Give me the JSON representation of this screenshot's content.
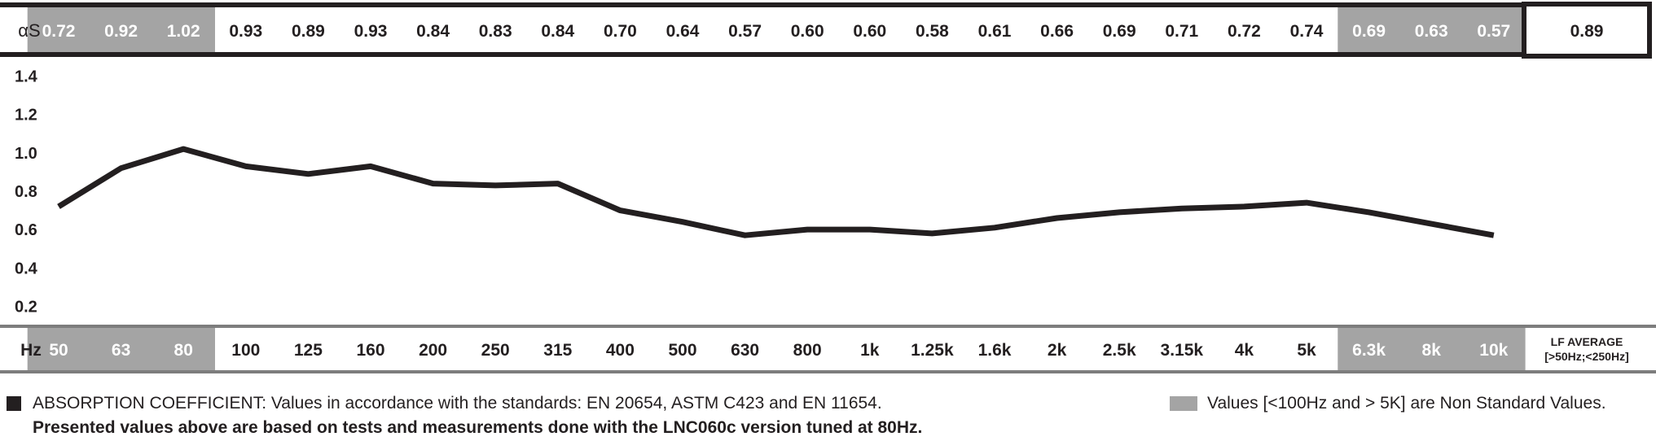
{
  "chart_data": {
    "type": "line",
    "row_label_top": "αS",
    "row_label_bottom": "Hz",
    "categories": [
      "50",
      "63",
      "80",
      "100",
      "125",
      "160",
      "200",
      "250",
      "315",
      "400",
      "500",
      "630",
      "800",
      "1k",
      "1.25k",
      "1.6k",
      "2k",
      "2.5k",
      "3.15k",
      "4k",
      "5k",
      "6.3k",
      "8k",
      "10k"
    ],
    "values": [
      0.72,
      0.92,
      1.02,
      0.93,
      0.89,
      0.93,
      0.84,
      0.83,
      0.84,
      0.7,
      0.64,
      0.57,
      0.6,
      0.6,
      0.58,
      0.61,
      0.66,
      0.69,
      0.71,
      0.72,
      0.74,
      0.69,
      0.63,
      0.57
    ],
    "value_labels": [
      "0.72",
      "0.92",
      "1.02",
      "0.93",
      "0.89",
      "0.93",
      "0.84",
      "0.83",
      "0.84",
      "0.70",
      "0.64",
      "0.57",
      "0.60",
      "0.60",
      "0.58",
      "0.61",
      "0.66",
      "0.69",
      "0.71",
      "0.72",
      "0.74",
      "0.69",
      "0.63",
      "0.57"
    ],
    "non_standard": [
      true,
      true,
      true,
      false,
      false,
      false,
      false,
      false,
      false,
      false,
      false,
      false,
      false,
      false,
      false,
      false,
      false,
      false,
      false,
      false,
      false,
      true,
      true,
      true
    ],
    "average": {
      "value": "0.89",
      "label_line1": "LF AVERAGE",
      "label_line2": "[>50Hz;<250Hz]"
    },
    "ylim": [
      0.1,
      1.5
    ],
    "yticks": [
      "1.4",
      "1.2",
      "1.0",
      "0.8",
      "0.6",
      "0.4",
      "0.2"
    ],
    "ytick_values": [
      1.4,
      1.2,
      1.0,
      0.8,
      0.6,
      0.4,
      0.2
    ],
    "grid": false,
    "colors": {
      "line": "#231f20",
      "shaded_cell": "#a4a4a4",
      "border": "#231f20"
    }
  },
  "legend": {
    "absorption_text": "ABSORPTION COEFFICIENT: Values in accordance with the standards: EN 20654, ASTM C423 and EN 11654.",
    "non_standard_text": "Values [<100Hz and > 5K] are Non Standard Values."
  },
  "note": "Presented values above are based on tests and measurements done with the LNC060c version tuned at 80Hz."
}
